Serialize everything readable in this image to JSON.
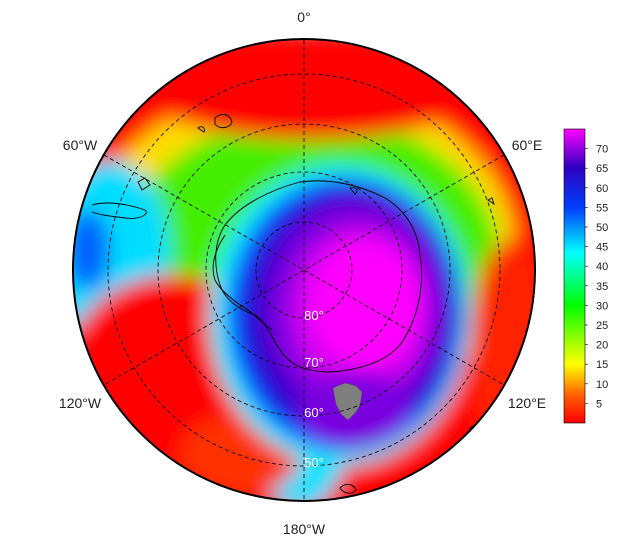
{
  "map": {
    "projection": "south-polar-stereographic",
    "longitude_labels": {
      "top": "0°",
      "upper_left": "60°W",
      "upper_right": "60°E",
      "lower_left": "120°W",
      "lower_right": "120°E",
      "bottom": "180°W"
    },
    "latitude_labels": [
      "80°",
      "70°",
      "60°",
      "50°"
    ],
    "graticule": {
      "latitudes": [
        80,
        70,
        60,
        50
      ],
      "meridian_step_deg": 60
    },
    "missing_data_color": "#7f7f7f",
    "coastline_color": "#000000"
  },
  "colorbar": {
    "ticks": [
      5,
      10,
      15,
      20,
      25,
      30,
      35,
      40,
      45,
      50,
      55,
      60,
      65,
      70
    ],
    "min": 0,
    "max": 75,
    "colors": [
      "#ff0000",
      "#ff6a00",
      "#ffff00",
      "#00ff00",
      "#00ffff",
      "#0040ff",
      "#3000c0",
      "#ff00ff"
    ]
  }
}
